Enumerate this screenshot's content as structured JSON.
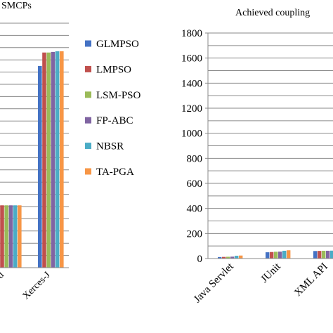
{
  "colors": {
    "GLMPSO": "#4472C4",
    "LMPSO": "#C0504D",
    "LSM-PSO": "#9BBB59",
    "FP-ABC": "#8064A2",
    "NBSR": "#4BACC6",
    "TA-PGA": "#F79646"
  },
  "chart_data": [
    {
      "type": "bar",
      "title": "SMCPs",
      "categories": [
        "d",
        "Xerces-J"
      ],
      "series": [
        {
          "name": "GLMPSO",
          "values": [
            510,
            1650
          ]
        },
        {
          "name": "LMPSO",
          "values": [
            510,
            1760
          ]
        },
        {
          "name": "LSM-PSO",
          "values": [
            510,
            1760
          ]
        },
        {
          "name": "FP-ABC",
          "values": [
            510,
            1765
          ]
        },
        {
          "name": "NBSR",
          "values": [
            510,
            1770
          ]
        },
        {
          "name": "TA-PGA",
          "values": [
            510,
            1770
          ]
        }
      ],
      "legend": {
        "placement": "right",
        "entries": [
          "GLMPSO",
          "LMPSO",
          "LSM-PSO",
          "FP-ABC",
          "NBSR",
          "TA-PGA"
        ]
      },
      "grid": true
    },
    {
      "type": "bar",
      "title": "Achieved coupling",
      "categories": [
        "Java Servlet",
        "JUnit",
        "XML API"
      ],
      "series": [
        {
          "name": "GLMPSO",
          "values": [
            12,
            50,
            60
          ]
        },
        {
          "name": "LMPSO",
          "values": [
            13,
            52,
            61
          ]
        },
        {
          "name": "LSM-PSO",
          "values": [
            14,
            54,
            62
          ]
        },
        {
          "name": "FP-ABC",
          "values": [
            15,
            55,
            62
          ]
        },
        {
          "name": "NBSR",
          "values": [
            22,
            62,
            63
          ]
        },
        {
          "name": "TA-PGA",
          "values": [
            24,
            66,
            65
          ]
        }
      ],
      "ylim": [
        0,
        1800
      ],
      "yticks": [
        0,
        200,
        400,
        600,
        800,
        1000,
        1200,
        1400,
        1600,
        1800
      ],
      "grid": true
    }
  ]
}
